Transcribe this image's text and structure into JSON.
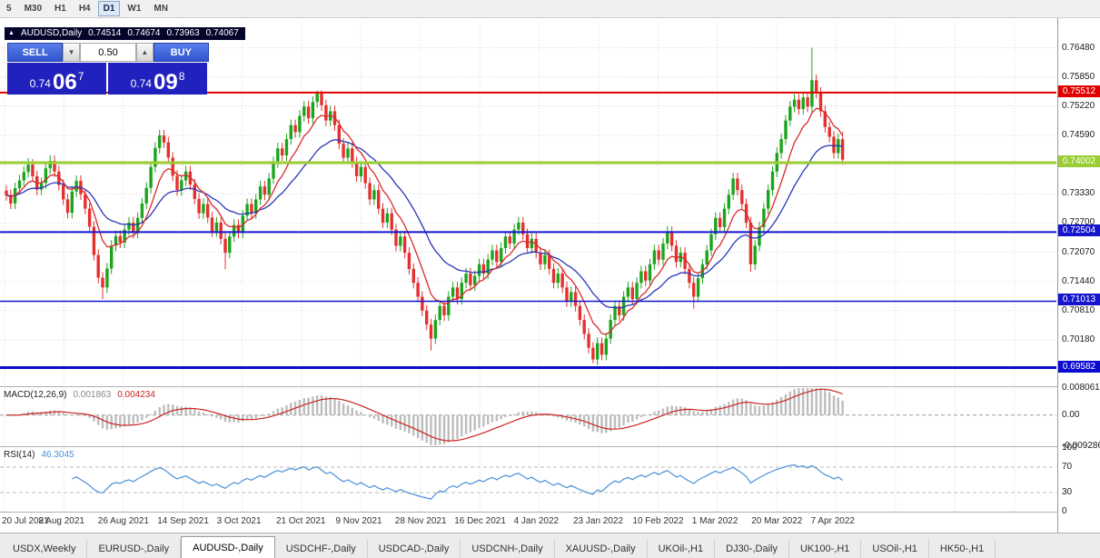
{
  "icons": {
    "up_triangle": "▲",
    "spin_up": "▲",
    "spin_down": "▼"
  },
  "toolbar": {
    "active": "D1",
    "timeframes": [
      {
        "label": "5"
      },
      {
        "label": "M30"
      },
      {
        "label": "H1"
      },
      {
        "label": "H4"
      },
      {
        "label": "D1"
      },
      {
        "label": "W1"
      },
      {
        "label": "MN"
      }
    ]
  },
  "quote": {
    "symbol": "AUDUSD,Daily",
    "open": "0.74514",
    "high": "0.74674",
    "low": "0.73963",
    "close": "0.74067"
  },
  "trade_panel": {
    "sell_label": "SELL",
    "buy_label": "BUY",
    "lot": "0.50",
    "sell_price": {
      "prefix": "0.74",
      "big": "06",
      "sup": "7"
    },
    "buy_price": {
      "prefix": "0.74",
      "big": "09",
      "sup": "8"
    }
  },
  "chart_data": {
    "type": "candlestick",
    "symbol": "AUDUSD",
    "timeframe": "Daily",
    "ylim": [
      0.692,
      0.77
    ],
    "grid_top": 0.7648,
    "grid_step": 0.0063,
    "colors": {
      "up": "#1CA51C",
      "down": "#E53030",
      "ma_fast": "#D92B2B",
      "ma_slow": "#2A35B8",
      "grid": "#D9D9D9"
    },
    "price_axis": [
      {
        "p": 0.7648,
        "t": "0.76480"
      },
      {
        "p": 0.7585,
        "t": "0.75850"
      },
      {
        "p": 0.7522,
        "t": "0.75220"
      },
      {
        "p": 0.7459,
        "t": "0.74590"
      },
      {
        "p": 0.7333,
        "t": "0.73330"
      },
      {
        "p": 0.727,
        "t": "0.72700"
      },
      {
        "p": 0.7207,
        "t": "0.72070"
      },
      {
        "p": 0.7144,
        "t": "0.71440"
      },
      {
        "p": 0.7081,
        "t": "0.70810"
      },
      {
        "p": 0.7018,
        "t": "0.70180"
      }
    ],
    "hlines": [
      {
        "price": 0.75512,
        "label": "0.75512",
        "color": "#E00000",
        "width": 2
      },
      {
        "price": 0.74002,
        "label": "0.74002",
        "color": "#9ACD32",
        "width": 3
      },
      {
        "price": 0.72504,
        "label": "0.72504",
        "color": "#1515CC",
        "width": 2
      },
      {
        "price": 0.71013,
        "label": "0.71013",
        "color": "#1515CC",
        "width": 1.5
      },
      {
        "price": 0.69582,
        "label": "0.69582",
        "color": "#0B0BD0",
        "width": 3
      }
    ],
    "dates": [
      "20 Jul 2021",
      "8 Aug 2021",
      "26 Aug 2021",
      "14 Sep 2021",
      "3 Oct 2021",
      "21 Oct 2021",
      "9 Nov 2021",
      "28 Nov 2021",
      "16 Dec 2021",
      "4 Jan 2022",
      "23 Jan 2022",
      "10 Feb 2022",
      "1 Mar 2022",
      "20 Mar 2022",
      "7 Apr 2022"
    ],
    "ma_fast": {
      "period": 8
    },
    "ma_slow": {
      "period": 21
    },
    "candles": [
      [
        0.734,
        0.7352,
        0.7318,
        0.733
      ],
      [
        0.733,
        0.7342,
        0.73,
        0.7312
      ],
      [
        0.7312,
        0.7357,
        0.73,
        0.7345
      ],
      [
        0.7345,
        0.7374,
        0.7333,
        0.7362
      ],
      [
        0.7362,
        0.7392,
        0.735,
        0.738
      ],
      [
        0.738,
        0.741,
        0.7368,
        0.7396
      ],
      [
        0.7396,
        0.7408,
        0.7359,
        0.7371
      ],
      [
        0.7371,
        0.7383,
        0.733,
        0.7342
      ],
      [
        0.7342,
        0.7368,
        0.733,
        0.7356
      ],
      [
        0.7356,
        0.74,
        0.7344,
        0.7388
      ],
      [
        0.7388,
        0.7416,
        0.7376,
        0.7404
      ],
      [
        0.7404,
        0.7416,
        0.7369,
        0.7381
      ],
      [
        0.7381,
        0.7393,
        0.734,
        0.7352
      ],
      [
        0.7352,
        0.7364,
        0.7309,
        0.7321
      ],
      [
        0.7321,
        0.7333,
        0.728,
        0.7292
      ],
      [
        0.7292,
        0.735,
        0.728,
        0.7338
      ],
      [
        0.7338,
        0.7373,
        0.7326,
        0.7361
      ],
      [
        0.7361,
        0.7373,
        0.732,
        0.7332
      ],
      [
        0.7332,
        0.7344,
        0.7289,
        0.7301
      ],
      [
        0.7301,
        0.7313,
        0.725,
        0.7262
      ],
      [
        0.7262,
        0.7274,
        0.7189,
        0.7201
      ],
      [
        0.7201,
        0.7213,
        0.714,
        0.7152
      ],
      [
        0.7152,
        0.7164,
        0.7106,
        0.7131
      ],
      [
        0.7131,
        0.7184,
        0.7119,
        0.7172
      ],
      [
        0.7172,
        0.7233,
        0.716,
        0.7221
      ],
      [
        0.7221,
        0.7254,
        0.7209,
        0.7242
      ],
      [
        0.7242,
        0.7254,
        0.7216,
        0.7228
      ],
      [
        0.7228,
        0.7268,
        0.7216,
        0.7256
      ],
      [
        0.7256,
        0.7283,
        0.7244,
        0.7271
      ],
      [
        0.7271,
        0.7283,
        0.7237,
        0.7249
      ],
      [
        0.7249,
        0.7293,
        0.7237,
        0.7281
      ],
      [
        0.7281,
        0.7324,
        0.7269,
        0.7312
      ],
      [
        0.7312,
        0.7358,
        0.73,
        0.7346
      ],
      [
        0.7346,
        0.7403,
        0.7334,
        0.7391
      ],
      [
        0.7391,
        0.7444,
        0.7379,
        0.7432
      ],
      [
        0.7432,
        0.7471,
        0.742,
        0.7459
      ],
      [
        0.7459,
        0.7471,
        0.7432,
        0.7444
      ],
      [
        0.7444,
        0.7456,
        0.7399,
        0.7411
      ],
      [
        0.7411,
        0.7423,
        0.736,
        0.7372
      ],
      [
        0.7372,
        0.7384,
        0.7329,
        0.7341
      ],
      [
        0.7341,
        0.7374,
        0.7329,
        0.7362
      ],
      [
        0.7362,
        0.7393,
        0.735,
        0.7381
      ],
      [
        0.7381,
        0.7393,
        0.7341,
        0.7353
      ],
      [
        0.7353,
        0.7365,
        0.731,
        0.7322
      ],
      [
        0.7322,
        0.7334,
        0.7279,
        0.7291
      ],
      [
        0.7291,
        0.7323,
        0.7279,
        0.7311
      ],
      [
        0.7311,
        0.7323,
        0.727,
        0.7282
      ],
      [
        0.7282,
        0.7294,
        0.724,
        0.7252
      ],
      [
        0.7252,
        0.7283,
        0.724,
        0.7271
      ],
      [
        0.7271,
        0.7283,
        0.7224,
        0.7236
      ],
      [
        0.7236,
        0.7248,
        0.717,
        0.7206
      ],
      [
        0.7206,
        0.7253,
        0.7194,
        0.7241
      ],
      [
        0.7241,
        0.7278,
        0.7229,
        0.7266
      ],
      [
        0.7266,
        0.7278,
        0.7237,
        0.7249
      ],
      [
        0.7249,
        0.7298,
        0.7237,
        0.7286
      ],
      [
        0.7286,
        0.7323,
        0.7274,
        0.7311
      ],
      [
        0.7311,
        0.7323,
        0.7279,
        0.7291
      ],
      [
        0.7291,
        0.7333,
        0.7279,
        0.7321
      ],
      [
        0.7321,
        0.7361,
        0.7309,
        0.7349
      ],
      [
        0.7349,
        0.7361,
        0.7319,
        0.7331
      ],
      [
        0.7331,
        0.7378,
        0.7319,
        0.7366
      ],
      [
        0.7366,
        0.7413,
        0.7354,
        0.7401
      ],
      [
        0.7401,
        0.7443,
        0.7389,
        0.7431
      ],
      [
        0.7431,
        0.7443,
        0.7404,
        0.7416
      ],
      [
        0.7416,
        0.7463,
        0.7404,
        0.7451
      ],
      [
        0.7451,
        0.7493,
        0.7439,
        0.7481
      ],
      [
        0.7481,
        0.7493,
        0.7454,
        0.7466
      ],
      [
        0.7466,
        0.7513,
        0.7454,
        0.7501
      ],
      [
        0.7501,
        0.7533,
        0.7489,
        0.7521
      ],
      [
        0.7521,
        0.7533,
        0.7484,
        0.7496
      ],
      [
        0.7496,
        0.7543,
        0.7484,
        0.7531
      ],
      [
        0.7531,
        0.7556,
        0.7519,
        0.7549
      ],
      [
        0.7549,
        0.7556,
        0.7512,
        0.7524
      ],
      [
        0.7524,
        0.7536,
        0.7479,
        0.7491
      ],
      [
        0.7491,
        0.7523,
        0.7479,
        0.7511
      ],
      [
        0.7511,
        0.7523,
        0.7469,
        0.7481
      ],
      [
        0.7481,
        0.7493,
        0.7429,
        0.7441
      ],
      [
        0.7441,
        0.7453,
        0.7399,
        0.7411
      ],
      [
        0.7411,
        0.7443,
        0.7399,
        0.7431
      ],
      [
        0.7431,
        0.7443,
        0.7389,
        0.7401
      ],
      [
        0.7401,
        0.7413,
        0.7359,
        0.7371
      ],
      [
        0.7371,
        0.7403,
        0.7359,
        0.7391
      ],
      [
        0.7391,
        0.7403,
        0.7344,
        0.7356
      ],
      [
        0.7356,
        0.7368,
        0.7309,
        0.7321
      ],
      [
        0.7321,
        0.7353,
        0.7309,
        0.7341
      ],
      [
        0.7341,
        0.7353,
        0.7289,
        0.7301
      ],
      [
        0.7301,
        0.7313,
        0.7259,
        0.7271
      ],
      [
        0.7271,
        0.7303,
        0.7259,
        0.7291
      ],
      [
        0.7291,
        0.7303,
        0.7244,
        0.7256
      ],
      [
        0.7256,
        0.7268,
        0.7209,
        0.7221
      ],
      [
        0.7221,
        0.7253,
        0.7209,
        0.7241
      ],
      [
        0.7241,
        0.7253,
        0.7194,
        0.7206
      ],
      [
        0.7206,
        0.7218,
        0.7159,
        0.7171
      ],
      [
        0.7171,
        0.7183,
        0.7129,
        0.7141
      ],
      [
        0.7141,
        0.7153,
        0.7099,
        0.7111
      ],
      [
        0.7111,
        0.7123,
        0.7069,
        0.7081
      ],
      [
        0.7081,
        0.7093,
        0.7039,
        0.7051
      ],
      [
        0.7051,
        0.7063,
        0.6995,
        0.7021
      ],
      [
        0.7021,
        0.7073,
        0.7009,
        0.7061
      ],
      [
        0.7061,
        0.7103,
        0.7049,
        0.7091
      ],
      [
        0.7091,
        0.7103,
        0.7059,
        0.7071
      ],
      [
        0.7071,
        0.7123,
        0.7059,
        0.7111
      ],
      [
        0.7111,
        0.7143,
        0.7099,
        0.7131
      ],
      [
        0.7131,
        0.7143,
        0.7094,
        0.7106
      ],
      [
        0.7106,
        0.7153,
        0.7094,
        0.7141
      ],
      [
        0.7141,
        0.7173,
        0.7129,
        0.7161
      ],
      [
        0.7161,
        0.7173,
        0.7124,
        0.7136
      ],
      [
        0.7136,
        0.7168,
        0.7124,
        0.7156
      ],
      [
        0.7156,
        0.7193,
        0.7144,
        0.7181
      ],
      [
        0.7181,
        0.7193,
        0.7149,
        0.7161
      ],
      [
        0.7161,
        0.7203,
        0.7149,
        0.7191
      ],
      [
        0.7191,
        0.7223,
        0.7179,
        0.7211
      ],
      [
        0.7211,
        0.7223,
        0.7174,
        0.7186
      ],
      [
        0.7186,
        0.7228,
        0.7174,
        0.7216
      ],
      [
        0.7216,
        0.7253,
        0.7204,
        0.7241
      ],
      [
        0.7241,
        0.7253,
        0.7214,
        0.7226
      ],
      [
        0.7226,
        0.7268,
        0.7214,
        0.7256
      ],
      [
        0.7256,
        0.7283,
        0.7244,
        0.7271
      ],
      [
        0.7271,
        0.7283,
        0.7234,
        0.7246
      ],
      [
        0.7246,
        0.7258,
        0.7204,
        0.7216
      ],
      [
        0.7216,
        0.7248,
        0.7204,
        0.7236
      ],
      [
        0.7236,
        0.7248,
        0.7194,
        0.7206
      ],
      [
        0.7206,
        0.7218,
        0.7169,
        0.7181
      ],
      [
        0.7181,
        0.7213,
        0.7169,
        0.7201
      ],
      [
        0.7201,
        0.7213,
        0.7159,
        0.7171
      ],
      [
        0.7171,
        0.7183,
        0.7129,
        0.7141
      ],
      [
        0.7141,
        0.7173,
        0.7129,
        0.7161
      ],
      [
        0.7161,
        0.7173,
        0.7119,
        0.7131
      ],
      [
        0.7131,
        0.7143,
        0.7089,
        0.7101
      ],
      [
        0.7101,
        0.7133,
        0.7089,
        0.7121
      ],
      [
        0.7121,
        0.7133,
        0.7079,
        0.7091
      ],
      [
        0.7091,
        0.7103,
        0.7049,
        0.7061
      ],
      [
        0.7061,
        0.7073,
        0.7019,
        0.7031
      ],
      [
        0.7031,
        0.7043,
        0.6989,
        0.7001
      ],
      [
        0.7001,
        0.7013,
        0.6968,
        0.6976
      ],
      [
        0.6976,
        0.7023,
        0.6964,
        0.7011
      ],
      [
        0.7011,
        0.7023,
        0.6974,
        0.6986
      ],
      [
        0.6986,
        0.7033,
        0.6974,
        0.7021
      ],
      [
        0.7021,
        0.7073,
        0.7009,
        0.7061
      ],
      [
        0.7061,
        0.7103,
        0.7049,
        0.7091
      ],
      [
        0.7091,
        0.7103,
        0.7059,
        0.7071
      ],
      [
        0.7071,
        0.7123,
        0.7059,
        0.7111
      ],
      [
        0.7111,
        0.7143,
        0.7099,
        0.7131
      ],
      [
        0.7131,
        0.7143,
        0.7094,
        0.7106
      ],
      [
        0.7106,
        0.7153,
        0.7094,
        0.7141
      ],
      [
        0.7141,
        0.7178,
        0.7129,
        0.7166
      ],
      [
        0.7166,
        0.7178,
        0.7134,
        0.7146
      ],
      [
        0.7146,
        0.7193,
        0.7134,
        0.7181
      ],
      [
        0.7181,
        0.7223,
        0.7169,
        0.7211
      ],
      [
        0.7211,
        0.7223,
        0.7179,
        0.7191
      ],
      [
        0.7191,
        0.7238,
        0.7179,
        0.7226
      ],
      [
        0.7226,
        0.7263,
        0.7214,
        0.7251
      ],
      [
        0.7251,
        0.7263,
        0.7209,
        0.7221
      ],
      [
        0.7221,
        0.7233,
        0.7174,
        0.7186
      ],
      [
        0.7186,
        0.7218,
        0.7174,
        0.7206
      ],
      [
        0.7206,
        0.7218,
        0.7159,
        0.7171
      ],
      [
        0.7171,
        0.7183,
        0.7129,
        0.7141
      ],
      [
        0.7141,
        0.7153,
        0.7085,
        0.7111
      ],
      [
        0.7111,
        0.7163,
        0.7099,
        0.7151
      ],
      [
        0.7151,
        0.7193,
        0.7139,
        0.7181
      ],
      [
        0.7181,
        0.7223,
        0.7169,
        0.7211
      ],
      [
        0.7211,
        0.7258,
        0.7199,
        0.7246
      ],
      [
        0.7246,
        0.7293,
        0.7234,
        0.7281
      ],
      [
        0.7281,
        0.7293,
        0.7249,
        0.7261
      ],
      [
        0.7261,
        0.7313,
        0.7249,
        0.7301
      ],
      [
        0.7301,
        0.7343,
        0.7289,
        0.7331
      ],
      [
        0.7331,
        0.7378,
        0.7319,
        0.7366
      ],
      [
        0.7366,
        0.7378,
        0.7329,
        0.7341
      ],
      [
        0.7341,
        0.7353,
        0.7299,
        0.7311
      ],
      [
        0.7311,
        0.7323,
        0.7259,
        0.7271
      ],
      [
        0.7271,
        0.7283,
        0.7165,
        0.7181
      ],
      [
        0.7181,
        0.7233,
        0.7169,
        0.7221
      ],
      [
        0.7221,
        0.7273,
        0.7209,
        0.7261
      ],
      [
        0.7261,
        0.7313,
        0.7249,
        0.7301
      ],
      [
        0.7301,
        0.7353,
        0.7289,
        0.7341
      ],
      [
        0.7341,
        0.7393,
        0.7329,
        0.7381
      ],
      [
        0.7381,
        0.7433,
        0.7369,
        0.7421
      ],
      [
        0.7421,
        0.7463,
        0.7409,
        0.7451
      ],
      [
        0.7451,
        0.7503,
        0.7439,
        0.7491
      ],
      [
        0.7491,
        0.7533,
        0.7479,
        0.7521
      ],
      [
        0.7521,
        0.7548,
        0.7509,
        0.7536
      ],
      [
        0.7536,
        0.7548,
        0.7504,
        0.7516
      ],
      [
        0.7516,
        0.7553,
        0.7504,
        0.7541
      ],
      [
        0.7541,
        0.7553,
        0.7509,
        0.7521
      ],
      [
        0.7521,
        0.7648,
        0.7509,
        0.7578
      ],
      [
        0.7578,
        0.759,
        0.7539,
        0.7551
      ],
      [
        0.7551,
        0.7563,
        0.7499,
        0.7511
      ],
      [
        0.7511,
        0.7523,
        0.7465,
        0.7477
      ],
      [
        0.7477,
        0.7489,
        0.7444,
        0.7456
      ],
      [
        0.7456,
        0.7468,
        0.7409,
        0.7421
      ],
      [
        0.7421,
        0.7463,
        0.7409,
        0.7451
      ],
      [
        0.7451,
        0.7467,
        0.7396,
        0.7407
      ]
    ],
    "macd": {
      "label": "MACD(12,26,9)",
      "value_main": "0.001863",
      "value_signal": "0.004234",
      "params": [
        12,
        26,
        9
      ],
      "range": [
        -0.009286,
        0.008061
      ],
      "axis_labels": [
        {
          "v": 0.008061,
          "t": "0.008061"
        },
        {
          "v": 0,
          "t": "0.00"
        },
        {
          "v": -0.009286,
          "t": "-0.009286"
        }
      ],
      "colors": {
        "hist": "#BDBDBD",
        "signal": "#CC2222"
      }
    },
    "rsi": {
      "label": "RSI(14)",
      "value": "46.3045",
      "period": 14,
      "levels": [
        70,
        30
      ],
      "color": "#4A90D9",
      "axis_labels": [
        {
          "v": 100,
          "t": "100"
        },
        {
          "v": 70,
          "t": "70"
        },
        {
          "v": 30,
          "t": "30"
        },
        {
          "v": 0,
          "t": "0"
        }
      ]
    }
  },
  "tabs": {
    "active_index": 2,
    "items": [
      {
        "label": "USDX,Weekly"
      },
      {
        "label": "EURUSD-,Daily"
      },
      {
        "label": "AUDUSD-,Daily"
      },
      {
        "label": "USDCHF-,Daily"
      },
      {
        "label": "USDCAD-,Daily"
      },
      {
        "label": "USDCNH-,Daily"
      },
      {
        "label": "XAUUSD-,Daily"
      },
      {
        "label": "UKOil-,H1"
      },
      {
        "label": "DJ30-,Daily"
      },
      {
        "label": "UK100-,H1"
      },
      {
        "label": "USOil-,H1"
      },
      {
        "label": "HK50-,H1"
      }
    ]
  }
}
